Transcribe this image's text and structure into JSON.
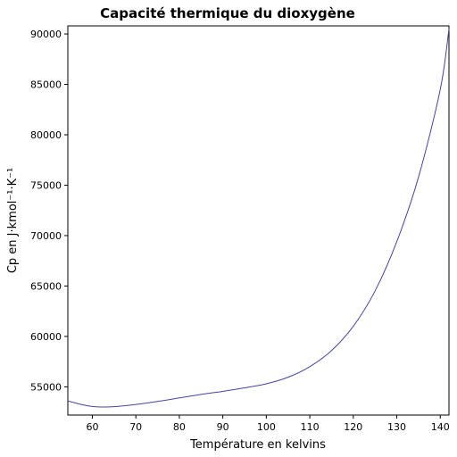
{
  "chart_data": {
    "type": "line",
    "title": "Capacité thermique du dioxygène",
    "xlabel": "Température en kelvins",
    "ylabel": "Cp en J·kmol⁻¹·K⁻¹",
    "xlim": [
      54.36,
      142
    ],
    "ylim": [
      52200,
      90800
    ],
    "xticks": [
      60,
      70,
      80,
      90,
      100,
      110,
      120,
      130,
      140
    ],
    "xtick_labels": [
      "60",
      "70",
      "80",
      "90",
      "100",
      "110",
      "120",
      "130",
      "140"
    ],
    "yticks": [
      55000,
      60000,
      65000,
      70000,
      75000,
      80000,
      85000,
      90000
    ],
    "ytick_labels": [
      "55000",
      "60000",
      "65000",
      "70000",
      "75000",
      "80000",
      "85000",
      "90000"
    ],
    "grid": false,
    "legend": "none",
    "series": [
      {
        "color": "#4444aa",
        "x": [
          54.36,
          57,
          60,
          62,
          65,
          70,
          75,
          80,
          85,
          90,
          95,
          100,
          105,
          110,
          115,
          120,
          125,
          130,
          135,
          140,
          142
        ],
        "y": [
          53600,
          53300,
          53050,
          53000,
          53030,
          53250,
          53550,
          53900,
          54250,
          54550,
          54900,
          55300,
          55950,
          57000,
          58600,
          61000,
          64500,
          69400,
          75800,
          84500,
          90500
        ]
      }
    ]
  }
}
